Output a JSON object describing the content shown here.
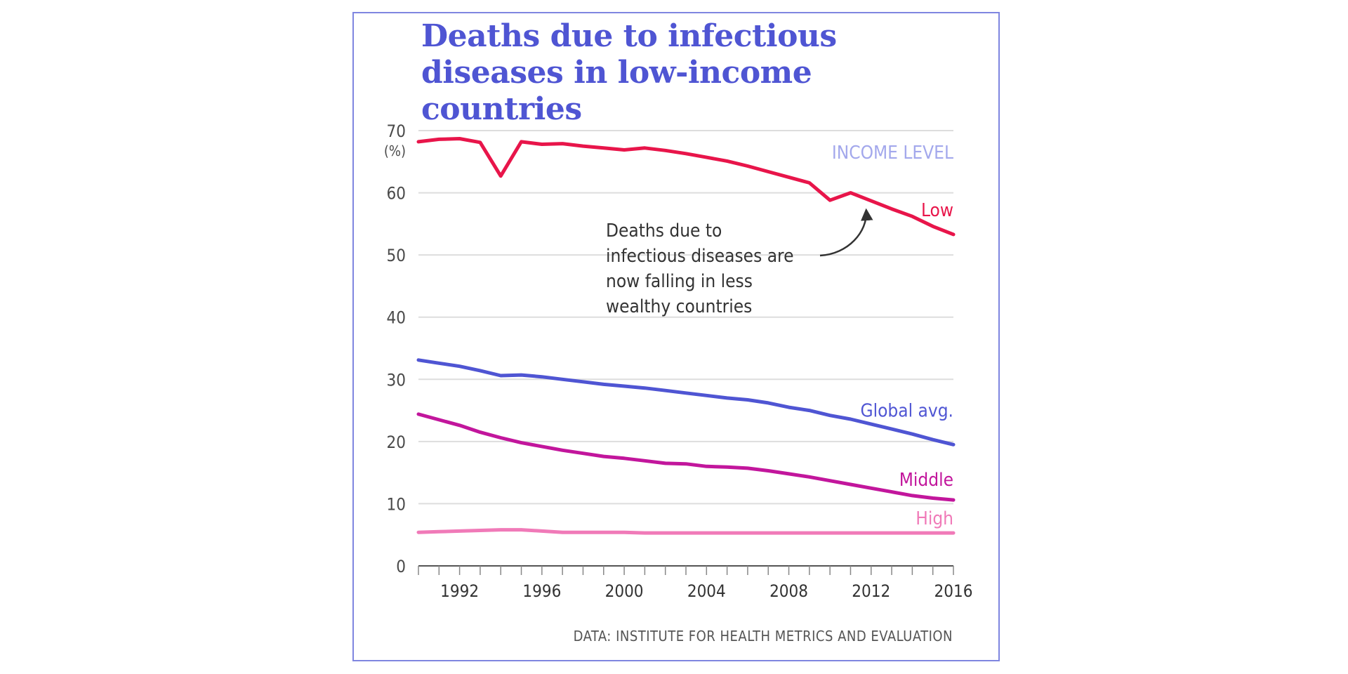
{
  "chart_data": {
    "type": "line",
    "title": "Deaths due to infectious diseases in low-income countries",
    "xlabel": "",
    "ylabel": "(%)",
    "xlim": [
      1990,
      2016
    ],
    "ylim": [
      0,
      70
    ],
    "y_ticks": [
      "70",
      "60",
      "50",
      "40",
      "30",
      "20",
      "10",
      "0"
    ],
    "x_tick_labels": [
      "1992",
      "1996",
      "2000",
      "2004",
      "2008",
      "2012",
      "2016"
    ],
    "x": [
      1990,
      1991,
      1992,
      1993,
      1994,
      1995,
      1996,
      1997,
      1998,
      1999,
      2000,
      2001,
      2002,
      2003,
      2004,
      2005,
      2006,
      2007,
      2008,
      2009,
      2010,
      2011,
      2012,
      2013,
      2014,
      2015,
      2016
    ],
    "legend_title": "INCOME LEVEL",
    "series": [
      {
        "name": "Low",
        "color": "#e8154a",
        "values": [
          68.2,
          68.6,
          68.7,
          68.1,
          62.7,
          68.2,
          67.8,
          67.9,
          67.5,
          67.2,
          66.9,
          67.2,
          66.8,
          66.3,
          65.7,
          65.1,
          64.3,
          63.4,
          62.5,
          61.6,
          58.8,
          60.0,
          58.7,
          57.4,
          56.2,
          54.6,
          53.3
        ]
      },
      {
        "name": "Global avg.",
        "color": "#4f55d3",
        "values": [
          33.1,
          32.6,
          32.1,
          31.4,
          30.6,
          30.7,
          30.4,
          30.0,
          29.6,
          29.2,
          28.9,
          28.6,
          28.2,
          27.8,
          27.4,
          27.0,
          26.7,
          26.2,
          25.5,
          25.0,
          24.2,
          23.6,
          22.8,
          22.0,
          21.2,
          20.3,
          19.5
        ]
      },
      {
        "name": "Middle",
        "color": "#c2169c",
        "values": [
          24.4,
          23.5,
          22.6,
          21.5,
          20.6,
          19.8,
          19.2,
          18.6,
          18.1,
          17.6,
          17.3,
          16.9,
          16.5,
          16.4,
          16.0,
          15.9,
          15.7,
          15.3,
          14.8,
          14.3,
          13.7,
          13.1,
          12.5,
          11.9,
          11.3,
          10.9,
          10.6
        ]
      },
      {
        "name": "High",
        "color": "#f07ab8",
        "values": [
          5.4,
          5.5,
          5.6,
          5.7,
          5.8,
          5.8,
          5.6,
          5.4,
          5.4,
          5.4,
          5.4,
          5.3,
          5.3,
          5.3,
          5.3,
          5.3,
          5.3,
          5.3,
          5.3,
          5.3,
          5.3,
          5.3,
          5.3,
          5.3,
          5.3,
          5.3,
          5.3
        ]
      }
    ],
    "annotation": {
      "lines": [
        "Deaths due to",
        "infectious diseases are",
        "now falling in less",
        "wealthy countries"
      ],
      "points_to": {
        "series": "Low",
        "x": 2011.9,
        "y": 58.7
      }
    },
    "source": "DATA: INSTITUTE FOR HEALTH METRICS AND EVALUATION"
  }
}
